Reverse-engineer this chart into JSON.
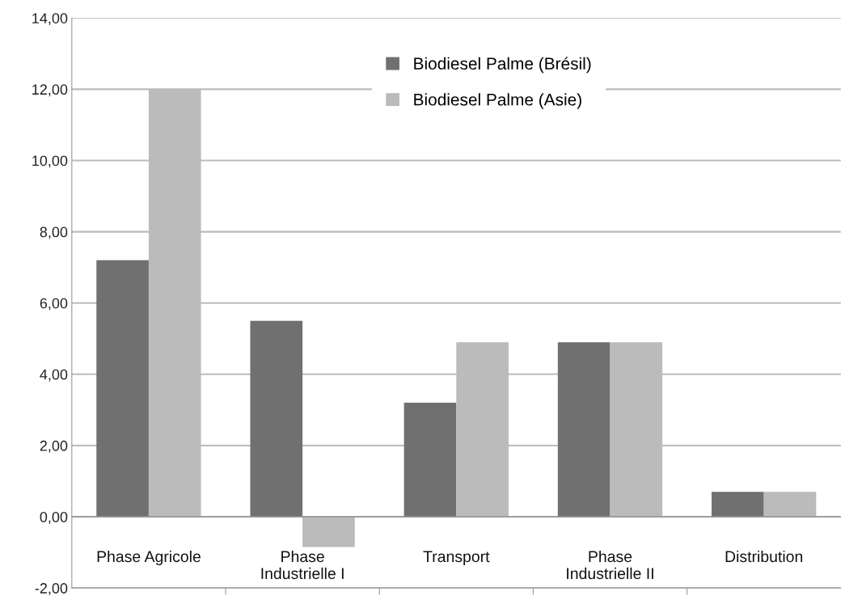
{
  "chart_data": {
    "type": "bar",
    "categories": [
      "Phase Agricole",
      "Phase\nIndustrielle I",
      "Transport",
      "Phase\nIndustrielle II",
      "Distribution"
    ],
    "series": [
      {
        "name": "Biodiesel Palme (Brésil)",
        "color": "#707070",
        "values": [
          7.2,
          5.5,
          3.2,
          4.9,
          0.7
        ]
      },
      {
        "name": "Biodiesel Palme (Asie)",
        "color": "#bbbbbb",
        "values": [
          12.0,
          -0.85,
          4.9,
          4.9,
          0.7
        ]
      }
    ],
    "ylim": [
      -2,
      14
    ],
    "yticks": [
      {
        "value": -2,
        "label": "-2,00"
      },
      {
        "value": 0,
        "label": "0,00"
      },
      {
        "value": 2,
        "label": "2,00"
      },
      {
        "value": 4,
        "label": "4,00"
      },
      {
        "value": 6,
        "label": "6,00"
      },
      {
        "value": 8,
        "label": "8,00"
      },
      {
        "value": 10,
        "label": "10,00"
      },
      {
        "value": 12,
        "label": "12,00"
      },
      {
        "value": 14,
        "label": "14,00"
      }
    ],
    "grid": "y",
    "legend": "top"
  }
}
